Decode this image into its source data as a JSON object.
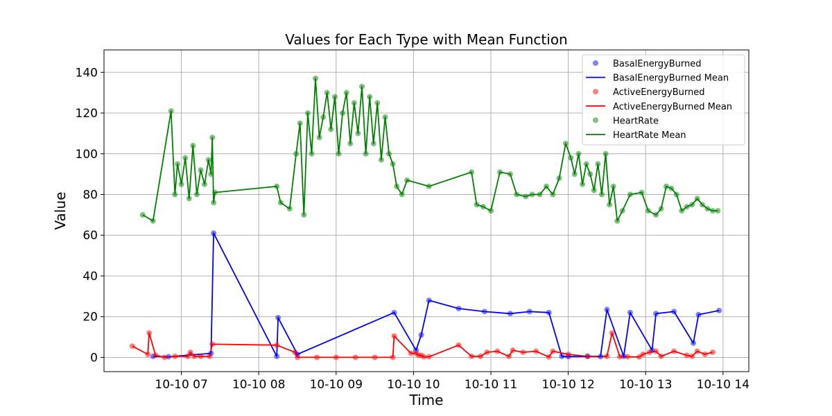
{
  "chart_data": {
    "type": "line",
    "title": "Values for Each Type with Mean Function",
    "xlabel": "Time",
    "ylabel": "Value",
    "xlim": [
      "2024-10-10 06:00",
      "2024-10-10 14:20"
    ],
    "ylim": [
      -7,
      151
    ],
    "x_ticks": [
      "2024-10-10 07:00",
      "2024-10-10 08:00",
      "2024-10-10 09:00",
      "2024-10-10 10:00",
      "2024-10-10 11:00",
      "2024-10-10 12:00",
      "2024-10-10 13:00",
      "2024-10-10 14:00"
    ],
    "x_tick_labels": [
      "10-10 07",
      "10-10 08",
      "10-10 09",
      "10-10 10",
      "10-10 11",
      "10-10 12",
      "10-10 13",
      "10-10 14"
    ],
    "y_ticks": [
      0,
      20,
      40,
      60,
      80,
      100,
      120,
      140
    ],
    "grid": true,
    "legend_position": "top-right",
    "series": [
      {
        "name": "BasalEnergyBurned",
        "mean_name": "BasalEnergyBurned Mean",
        "color": "#0000ff",
        "x": [
          "2024-10-10 06:38",
          "2024-10-10 06:50",
          "2024-10-10 07:23",
          "2024-10-10 07:25",
          "2024-10-10 08:14",
          "2024-10-10 08:15",
          "2024-10-10 08:30",
          "2024-10-10 09:45",
          "2024-10-10 10:02",
          "2024-10-10 10:06",
          "2024-10-10 10:12",
          "2024-10-10 10:35",
          "2024-10-10 10:55",
          "2024-10-10 11:15",
          "2024-10-10 11:30",
          "2024-10-10 11:45",
          "2024-10-10 11:55",
          "2024-10-10 12:00",
          "2024-10-10 12:15",
          "2024-10-10 12:25",
          "2024-10-10 12:30",
          "2024-10-10 12:43",
          "2024-10-10 12:48",
          "2024-10-10 13:05",
          "2024-10-10 13:08",
          "2024-10-10 13:22",
          "2024-10-10 13:37",
          "2024-10-10 13:41",
          "2024-10-10 13:57"
        ],
        "y": [
          0.5,
          0.3,
          2,
          61,
          0.5,
          19.5,
          1.5,
          22,
          3.5,
          11,
          28,
          24,
          22.5,
          21.5,
          22.5,
          22,
          0.5,
          0.4,
          0.5,
          0.4,
          23.5,
          0.5,
          22,
          3.5,
          21.5,
          22.5,
          7,
          21,
          23
        ]
      },
      {
        "name": "ActiveEnergyBurned",
        "mean_name": "ActiveEnergyBurned Mean",
        "color": "#ff0000",
        "x": [
          "2024-10-10 06:22",
          "2024-10-10 06:34",
          "2024-10-10 06:35",
          "2024-10-10 06:40",
          "2024-10-10 06:47",
          "2024-10-10 06:55",
          "2024-10-10 07:05",
          "2024-10-10 07:07",
          "2024-10-10 07:10",
          "2024-10-10 07:15",
          "2024-10-10 07:22",
          "2024-10-10 07:24",
          "2024-10-10 08:14",
          "2024-10-10 08:28",
          "2024-10-10 08:30",
          "2024-10-10 08:45",
          "2024-10-10 09:00",
          "2024-10-10 09:15",
          "2024-10-10 09:30",
          "2024-10-10 09:44",
          "2024-10-10 09:45",
          "2024-10-10 09:58",
          "2024-10-10 10:02",
          "2024-10-10 10:04",
          "2024-10-10 10:06",
          "2024-10-10 10:08",
          "2024-10-10 10:12",
          "2024-10-10 10:35",
          "2024-10-10 10:45",
          "2024-10-10 10:52",
          "2024-10-10 10:57",
          "2024-10-10 11:05",
          "2024-10-10 11:14",
          "2024-10-10 11:17",
          "2024-10-10 11:25",
          "2024-10-10 11:35",
          "2024-10-10 11:45",
          "2024-10-10 11:48",
          "2024-10-10 12:00",
          "2024-10-10 12:15",
          "2024-10-10 12:30",
          "2024-10-10 12:34",
          "2024-10-10 12:40",
          "2024-10-10 12:46",
          "2024-10-10 12:55",
          "2024-10-10 12:58",
          "2024-10-10 13:03",
          "2024-10-10 13:08",
          "2024-10-10 13:12",
          "2024-10-10 13:22",
          "2024-10-10 13:32",
          "2024-10-10 13:36",
          "2024-10-10 13:40",
          "2024-10-10 13:46",
          "2024-10-10 13:52"
        ],
        "y": [
          5.5,
          1.5,
          12,
          1,
          0,
          0.5,
          0.5,
          2.5,
          0.5,
          0.5,
          0.5,
          6.5,
          6,
          2.5,
          0,
          0,
          0,
          0,
          0,
          0,
          10.5,
          2,
          2,
          1,
          1,
          0.3,
          0.3,
          6,
          0.5,
          0.5,
          2.5,
          3,
          0.5,
          3.5,
          2.5,
          3,
          0.2,
          3,
          1.5,
          0.5,
          0.5,
          12,
          0.3,
          0.3,
          0.2,
          1.5,
          2.5,
          3,
          0.5,
          3,
          1,
          0.5,
          3,
          1.5,
          2.5
        ]
      },
      {
        "name": "HeartRate",
        "mean_name": "HeartRate Mean",
        "color": "#008000",
        "x": [
          "2024-10-10 06:30",
          "2024-10-10 06:38",
          "2024-10-10 06:52",
          "2024-10-10 06:55",
          "2024-10-10 06:57",
          "2024-10-10 07:00",
          "2024-10-10 07:03",
          "2024-10-10 07:06",
          "2024-10-10 07:09",
          "2024-10-10 07:12",
          "2024-10-10 07:15",
          "2024-10-10 07:18",
          "2024-10-10 07:21",
          "2024-10-10 07:23",
          "2024-10-10 07:24",
          "2024-10-10 07:25",
          "2024-10-10 07:26",
          "2024-10-10 08:14",
          "2024-10-10 08:17",
          "2024-10-10 08:24",
          "2024-10-10 08:29",
          "2024-10-10 08:32",
          "2024-10-10 08:35",
          "2024-10-10 08:38",
          "2024-10-10 08:41",
          "2024-10-10 08:44",
          "2024-10-10 08:47",
          "2024-10-10 08:50",
          "2024-10-10 08:53",
          "2024-10-10 08:56",
          "2024-10-10 08:59",
          "2024-10-10 09:02",
          "2024-10-10 09:05",
          "2024-10-10 09:08",
          "2024-10-10 09:11",
          "2024-10-10 09:14",
          "2024-10-10 09:17",
          "2024-10-10 09:20",
          "2024-10-10 09:23",
          "2024-10-10 09:26",
          "2024-10-10 09:29",
          "2024-10-10 09:32",
          "2024-10-10 09:35",
          "2024-10-10 09:38",
          "2024-10-10 09:41",
          "2024-10-10 09:44",
          "2024-10-10 09:47",
          "2024-10-10 09:51",
          "2024-10-10 09:55",
          "2024-10-10 10:12",
          "2024-10-10 10:45",
          "2024-10-10 10:49",
          "2024-10-10 10:54",
          "2024-10-10 11:00",
          "2024-10-10 11:07",
          "2024-10-10 11:15",
          "2024-10-10 11:20",
          "2024-10-10 11:27",
          "2024-10-10 11:32",
          "2024-10-10 11:38",
          "2024-10-10 11:43",
          "2024-10-10 11:48",
          "2024-10-10 11:53",
          "2024-10-10 11:58",
          "2024-10-10 12:02",
          "2024-10-10 12:05",
          "2024-10-10 12:08",
          "2024-10-10 12:11",
          "2024-10-10 12:14",
          "2024-10-10 12:17",
          "2024-10-10 12:20",
          "2024-10-10 12:23",
          "2024-10-10 12:26",
          "2024-10-10 12:29",
          "2024-10-10 12:32",
          "2024-10-10 12:35",
          "2024-10-10 12:38",
          "2024-10-10 12:42",
          "2024-10-10 12:48",
          "2024-10-10 12:57",
          "2024-10-10 13:02",
          "2024-10-10 13:08",
          "2024-10-10 13:12",
          "2024-10-10 13:16",
          "2024-10-10 13:20",
          "2024-10-10 13:24",
          "2024-10-10 13:28",
          "2024-10-10 13:32",
          "2024-10-10 13:36",
          "2024-10-10 13:40",
          "2024-10-10 13:44",
          "2024-10-10 13:48",
          "2024-10-10 13:52",
          "2024-10-10 13:56"
        ],
        "y": [
          70,
          67,
          121,
          80,
          95,
          85,
          98,
          78,
          104,
          80,
          92,
          85,
          97,
          90,
          108,
          76,
          81,
          84,
          76,
          73,
          100,
          115,
          70,
          120,
          100,
          137,
          108,
          118,
          130,
          112,
          128,
          100,
          120,
          130,
          105,
          125,
          110,
          133,
          100,
          128,
          105,
          125,
          97,
          118,
          100,
          95,
          84,
          80,
          87,
          84,
          91,
          75,
          74,
          72,
          91,
          90,
          80,
          79,
          80,
          80,
          84,
          80,
          88,
          105,
          98,
          90,
          100,
          85,
          95,
          90,
          82,
          95,
          80,
          100,
          75,
          84,
          67,
          72,
          80,
          81,
          72,
          70,
          73,
          84,
          83,
          80,
          72,
          74,
          75,
          78,
          75,
          73,
          72,
          72
        ]
      }
    ]
  }
}
